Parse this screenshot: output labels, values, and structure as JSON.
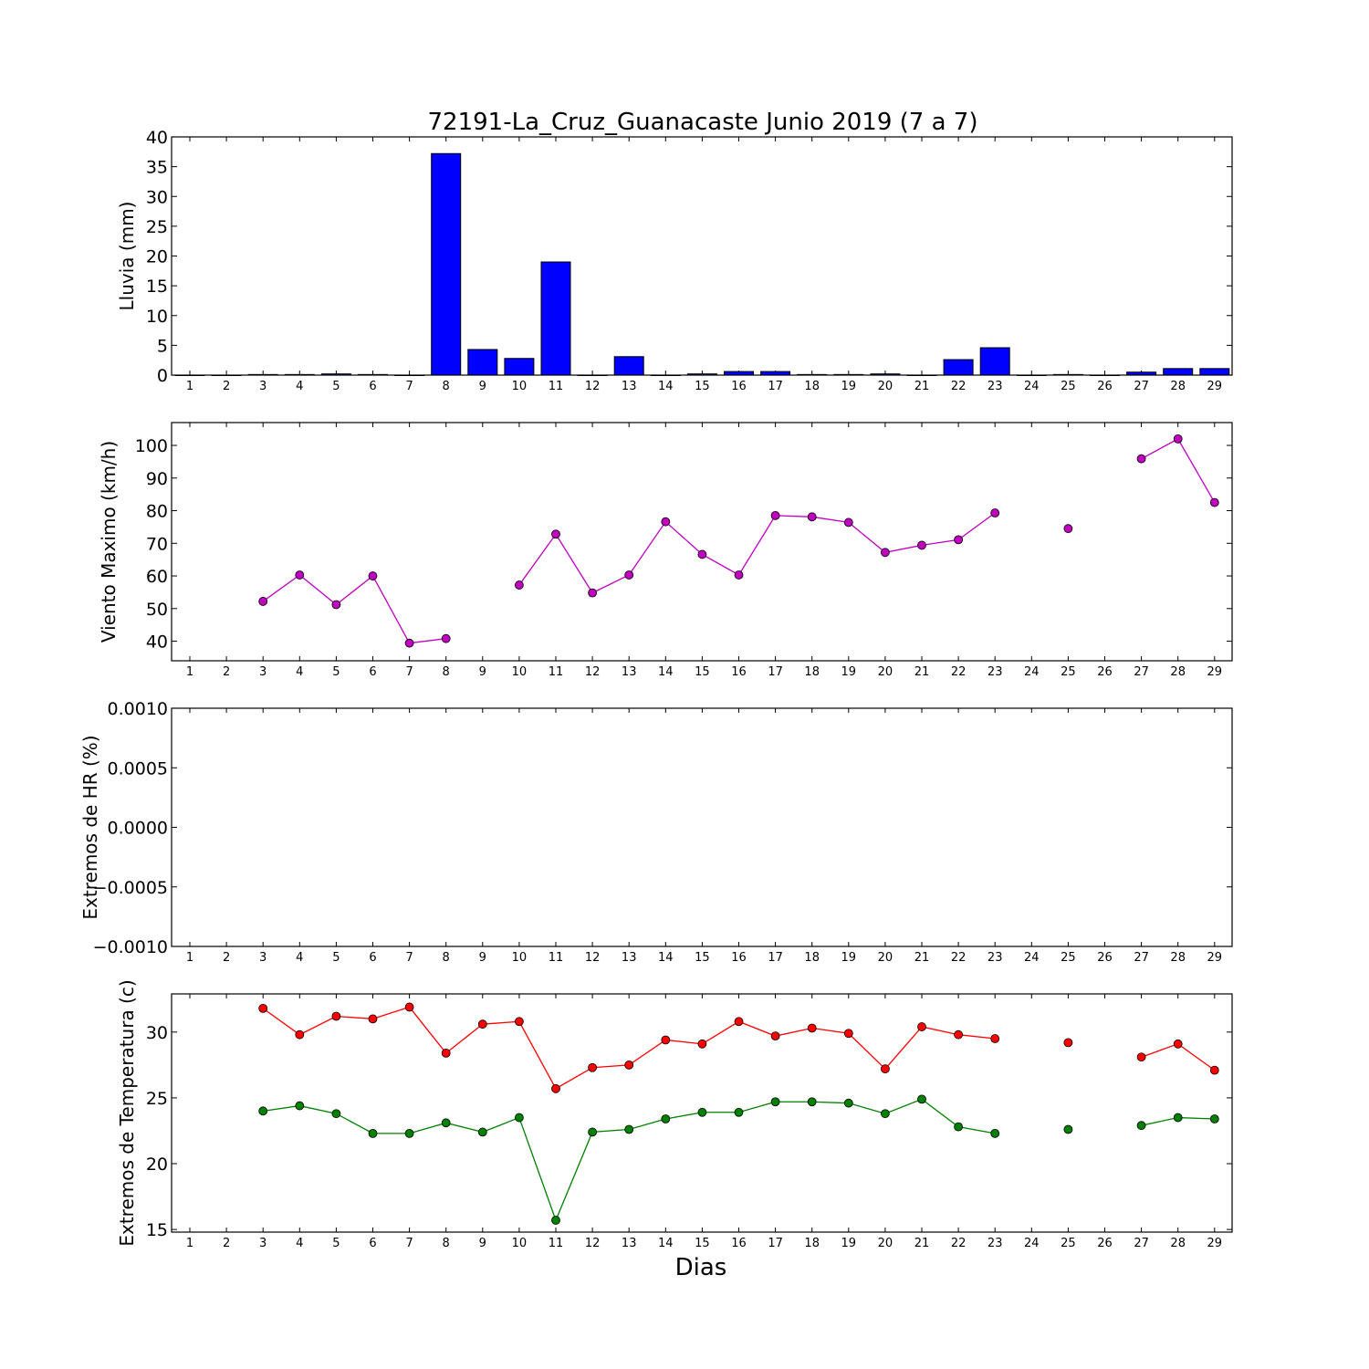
{
  "figure": {
    "title": "72191-La_Cruz_Guanacaste Junio 2019  (7 a 7)",
    "xlabel": "Dias"
  },
  "colors": {
    "rain_bar": "#0000ff",
    "wind": "#bf00bf",
    "temp_max": "#ff0000",
    "temp_min": "#008000"
  },
  "chart_data": [
    {
      "type": "bar",
      "ylabel": "Lluvia (mm)",
      "ylim": [
        0,
        40
      ],
      "yticks": [
        "0",
        "5",
        "10",
        "15",
        "20",
        "25",
        "30",
        "35",
        "40"
      ],
      "categories": [
        1,
        2,
        3,
        4,
        5,
        6,
        7,
        8,
        9,
        10,
        11,
        12,
        13,
        14,
        15,
        16,
        17,
        18,
        19,
        20,
        21,
        22,
        23,
        24,
        25,
        26,
        27,
        28,
        29
      ],
      "values": [
        0,
        0,
        0.1,
        0.1,
        0.2,
        0.1,
        0,
        37.2,
        4.3,
        2.8,
        19.0,
        0,
        3.1,
        0,
        0.2,
        0.6,
        0.6,
        0.1,
        0.1,
        0.2,
        0,
        2.6,
        4.6,
        0,
        0.1,
        0,
        0.5,
        1.1,
        1.1
      ]
    },
    {
      "type": "line",
      "ylabel": "Viento Maximo (km/h)",
      "ylim": [
        34,
        107
      ],
      "yticks": [
        40,
        50,
        60,
        70,
        80,
        90,
        100
      ],
      "x": [
        1,
        2,
        3,
        4,
        5,
        6,
        7,
        8,
        9,
        10,
        11,
        12,
        13,
        14,
        15,
        16,
        17,
        18,
        19,
        20,
        21,
        22,
        23,
        24,
        25,
        26,
        27,
        28,
        29
      ],
      "series": [
        {
          "values": [
            null,
            null,
            52.2,
            60.3,
            51.2,
            60.0,
            39.4,
            40.8,
            null,
            57.2,
            72.8,
            54.8,
            60.3,
            76.6,
            66.6,
            60.3,
            78.5,
            78.1,
            76.4,
            67.2,
            69.4,
            71.1,
            79.3,
            null,
            74.5,
            null,
            95.9,
            102.0,
            82.5
          ]
        }
      ]
    },
    {
      "type": "line",
      "ylabel": "Extremos de HR (%)",
      "ylim": [
        -0.001,
        0.001
      ],
      "yticks": [
        "−0.0010",
        "−0.0005",
        "0.0000",
        "0.0005",
        "0.0010"
      ],
      "x": [
        1,
        2,
        3,
        4,
        5,
        6,
        7,
        8,
        9,
        10,
        11,
        12,
        13,
        14,
        15,
        16,
        17,
        18,
        19,
        20,
        21,
        22,
        23,
        24,
        25,
        26,
        27,
        28,
        29
      ],
      "series": []
    },
    {
      "type": "line",
      "ylabel": "Extremos de Temperatura (c)",
      "ylim": [
        14.8,
        32.9
      ],
      "yticks": [
        15,
        20,
        25,
        30
      ],
      "x": [
        1,
        2,
        3,
        4,
        5,
        6,
        7,
        8,
        9,
        10,
        11,
        12,
        13,
        14,
        15,
        16,
        17,
        18,
        19,
        20,
        21,
        22,
        23,
        24,
        25,
        26,
        27,
        28,
        29
      ],
      "series": [
        {
          "role": "max",
          "values": [
            null,
            null,
            31.8,
            29.8,
            31.2,
            31.0,
            31.9,
            28.4,
            30.6,
            30.8,
            25.7,
            27.3,
            27.5,
            29.4,
            29.1,
            30.8,
            29.7,
            30.3,
            29.9,
            27.2,
            30.4,
            29.8,
            29.5,
            null,
            29.2,
            null,
            28.1,
            29.1,
            27.1
          ]
        },
        {
          "role": "min",
          "values": [
            null,
            null,
            24.0,
            24.4,
            23.8,
            22.3,
            22.3,
            23.1,
            22.4,
            23.5,
            15.7,
            22.4,
            22.6,
            23.4,
            23.9,
            23.9,
            24.7,
            24.7,
            24.6,
            23.8,
            24.9,
            22.8,
            22.3,
            null,
            22.6,
            null,
            22.9,
            23.5,
            23.4
          ]
        }
      ]
    }
  ]
}
